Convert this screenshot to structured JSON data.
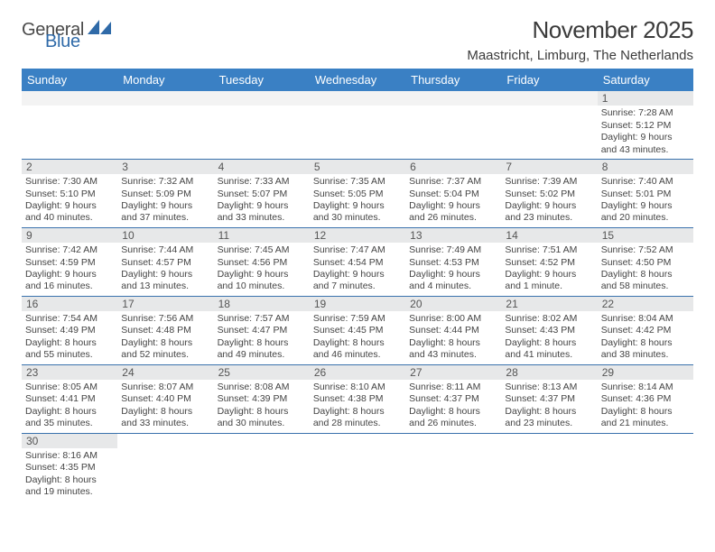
{
  "brand": {
    "general": "General",
    "blue": "Blue",
    "accent_color": "#2f6aa8"
  },
  "title": "November 2025",
  "location": "Maastricht, Limburg, The Netherlands",
  "header_bg": "#3a80c4",
  "row_divider": "#3a72ad",
  "daynum_bg": "#e7e8e9",
  "day_names": [
    "Sunday",
    "Monday",
    "Tuesday",
    "Wednesday",
    "Thursday",
    "Friday",
    "Saturday"
  ],
  "weeks": [
    [
      null,
      null,
      null,
      null,
      null,
      null,
      {
        "n": "1",
        "sr": "Sunrise: 7:28 AM",
        "ss": "Sunset: 5:12 PM",
        "d1": "Daylight: 9 hours",
        "d2": "and 43 minutes."
      }
    ],
    [
      {
        "n": "2",
        "sr": "Sunrise: 7:30 AM",
        "ss": "Sunset: 5:10 PM",
        "d1": "Daylight: 9 hours",
        "d2": "and 40 minutes."
      },
      {
        "n": "3",
        "sr": "Sunrise: 7:32 AM",
        "ss": "Sunset: 5:09 PM",
        "d1": "Daylight: 9 hours",
        "d2": "and 37 minutes."
      },
      {
        "n": "4",
        "sr": "Sunrise: 7:33 AM",
        "ss": "Sunset: 5:07 PM",
        "d1": "Daylight: 9 hours",
        "d2": "and 33 minutes."
      },
      {
        "n": "5",
        "sr": "Sunrise: 7:35 AM",
        "ss": "Sunset: 5:05 PM",
        "d1": "Daylight: 9 hours",
        "d2": "and 30 minutes."
      },
      {
        "n": "6",
        "sr": "Sunrise: 7:37 AM",
        "ss": "Sunset: 5:04 PM",
        "d1": "Daylight: 9 hours",
        "d2": "and 26 minutes."
      },
      {
        "n": "7",
        "sr": "Sunrise: 7:39 AM",
        "ss": "Sunset: 5:02 PM",
        "d1": "Daylight: 9 hours",
        "d2": "and 23 minutes."
      },
      {
        "n": "8",
        "sr": "Sunrise: 7:40 AM",
        "ss": "Sunset: 5:01 PM",
        "d1": "Daylight: 9 hours",
        "d2": "and 20 minutes."
      }
    ],
    [
      {
        "n": "9",
        "sr": "Sunrise: 7:42 AM",
        "ss": "Sunset: 4:59 PM",
        "d1": "Daylight: 9 hours",
        "d2": "and 16 minutes."
      },
      {
        "n": "10",
        "sr": "Sunrise: 7:44 AM",
        "ss": "Sunset: 4:57 PM",
        "d1": "Daylight: 9 hours",
        "d2": "and 13 minutes."
      },
      {
        "n": "11",
        "sr": "Sunrise: 7:45 AM",
        "ss": "Sunset: 4:56 PM",
        "d1": "Daylight: 9 hours",
        "d2": "and 10 minutes."
      },
      {
        "n": "12",
        "sr": "Sunrise: 7:47 AM",
        "ss": "Sunset: 4:54 PM",
        "d1": "Daylight: 9 hours",
        "d2": "and 7 minutes."
      },
      {
        "n": "13",
        "sr": "Sunrise: 7:49 AM",
        "ss": "Sunset: 4:53 PM",
        "d1": "Daylight: 9 hours",
        "d2": "and 4 minutes."
      },
      {
        "n": "14",
        "sr": "Sunrise: 7:51 AM",
        "ss": "Sunset: 4:52 PM",
        "d1": "Daylight: 9 hours",
        "d2": "and 1 minute."
      },
      {
        "n": "15",
        "sr": "Sunrise: 7:52 AM",
        "ss": "Sunset: 4:50 PM",
        "d1": "Daylight: 8 hours",
        "d2": "and 58 minutes."
      }
    ],
    [
      {
        "n": "16",
        "sr": "Sunrise: 7:54 AM",
        "ss": "Sunset: 4:49 PM",
        "d1": "Daylight: 8 hours",
        "d2": "and 55 minutes."
      },
      {
        "n": "17",
        "sr": "Sunrise: 7:56 AM",
        "ss": "Sunset: 4:48 PM",
        "d1": "Daylight: 8 hours",
        "d2": "and 52 minutes."
      },
      {
        "n": "18",
        "sr": "Sunrise: 7:57 AM",
        "ss": "Sunset: 4:47 PM",
        "d1": "Daylight: 8 hours",
        "d2": "and 49 minutes."
      },
      {
        "n": "19",
        "sr": "Sunrise: 7:59 AM",
        "ss": "Sunset: 4:45 PM",
        "d1": "Daylight: 8 hours",
        "d2": "and 46 minutes."
      },
      {
        "n": "20",
        "sr": "Sunrise: 8:00 AM",
        "ss": "Sunset: 4:44 PM",
        "d1": "Daylight: 8 hours",
        "d2": "and 43 minutes."
      },
      {
        "n": "21",
        "sr": "Sunrise: 8:02 AM",
        "ss": "Sunset: 4:43 PM",
        "d1": "Daylight: 8 hours",
        "d2": "and 41 minutes."
      },
      {
        "n": "22",
        "sr": "Sunrise: 8:04 AM",
        "ss": "Sunset: 4:42 PM",
        "d1": "Daylight: 8 hours",
        "d2": "and 38 minutes."
      }
    ],
    [
      {
        "n": "23",
        "sr": "Sunrise: 8:05 AM",
        "ss": "Sunset: 4:41 PM",
        "d1": "Daylight: 8 hours",
        "d2": "and 35 minutes."
      },
      {
        "n": "24",
        "sr": "Sunrise: 8:07 AM",
        "ss": "Sunset: 4:40 PM",
        "d1": "Daylight: 8 hours",
        "d2": "and 33 minutes."
      },
      {
        "n": "25",
        "sr": "Sunrise: 8:08 AM",
        "ss": "Sunset: 4:39 PM",
        "d1": "Daylight: 8 hours",
        "d2": "and 30 minutes."
      },
      {
        "n": "26",
        "sr": "Sunrise: 8:10 AM",
        "ss": "Sunset: 4:38 PM",
        "d1": "Daylight: 8 hours",
        "d2": "and 28 minutes."
      },
      {
        "n": "27",
        "sr": "Sunrise: 8:11 AM",
        "ss": "Sunset: 4:37 PM",
        "d1": "Daylight: 8 hours",
        "d2": "and 26 minutes."
      },
      {
        "n": "28",
        "sr": "Sunrise: 8:13 AM",
        "ss": "Sunset: 4:37 PM",
        "d1": "Daylight: 8 hours",
        "d2": "and 23 minutes."
      },
      {
        "n": "29",
        "sr": "Sunrise: 8:14 AM",
        "ss": "Sunset: 4:36 PM",
        "d1": "Daylight: 8 hours",
        "d2": "and 21 minutes."
      }
    ],
    [
      {
        "n": "30",
        "sr": "Sunrise: 8:16 AM",
        "ss": "Sunset: 4:35 PM",
        "d1": "Daylight: 8 hours",
        "d2": "and 19 minutes."
      },
      null,
      null,
      null,
      null,
      null,
      null
    ]
  ]
}
